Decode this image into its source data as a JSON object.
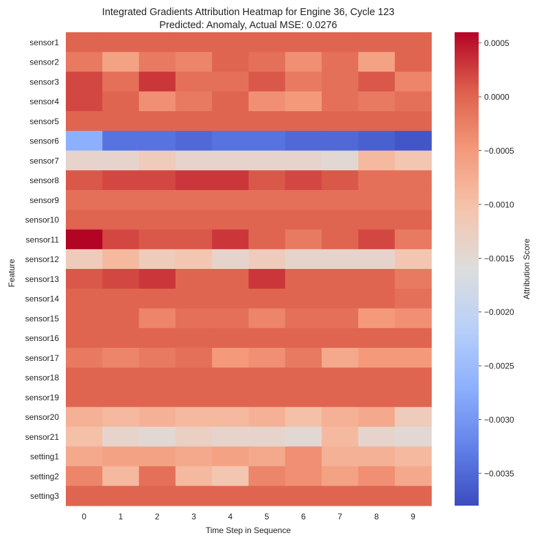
{
  "chart_data": {
    "type": "heatmap",
    "title": "Integrated Gradients Attribution Heatmap for Engine 36, Cycle 123",
    "subtitle": "Predicted: Anomaly, Actual MSE: 0.0276",
    "xlabel": "Time Step in Sequence",
    "ylabel": "Feature",
    "colorbar_label": "Attribution Score",
    "colormap": "coolwarm",
    "vmin": -0.0038,
    "vmax": 0.0006,
    "colorbar_ticks": [
      0.0005,
      0.0,
      -0.0005,
      -0.001,
      -0.0015,
      -0.002,
      -0.0025,
      -0.003,
      -0.0035
    ],
    "colorbar_tick_labels": [
      "0.0005",
      "0.0000",
      "−0.0005",
      "−0.0010",
      "−0.0015",
      "−0.0020",
      "−0.0025",
      "−0.0030",
      "−0.0035"
    ],
    "x": [
      "0",
      "1",
      "2",
      "3",
      "4",
      "5",
      "6",
      "7",
      "8",
      "9"
    ],
    "y": [
      "sensor1",
      "sensor2",
      "sensor3",
      "sensor4",
      "sensor5",
      "sensor6",
      "sensor7",
      "sensor8",
      "sensor9",
      "sensor10",
      "sensor11",
      "sensor12",
      "sensor13",
      "sensor14",
      "sensor15",
      "sensor16",
      "sensor17",
      "sensor18",
      "sensor19",
      "sensor20",
      "sensor21",
      "setting1",
      "setting2",
      "setting3"
    ],
    "values": [
      [
        0.0,
        0.0,
        0.0,
        0.0,
        0.0,
        0.0,
        0.0,
        0.0,
        0.0,
        0.0
      ],
      [
        -0.0002,
        -0.0006,
        -0.0002,
        -0.0003,
        0.0,
        -0.0001,
        -0.0004,
        -0.0001,
        -0.0006,
        0.0
      ],
      [
        0.0002,
        -0.0001,
        0.0003,
        -0.0001,
        -0.0001,
        0.0001,
        -0.0002,
        -0.0001,
        0.0001,
        -0.0003
      ],
      [
        0.0002,
        0.0,
        -0.0004,
        -0.0002,
        0.0,
        -0.0004,
        -0.0005,
        -0.0001,
        -0.0002,
        -0.0001
      ],
      [
        0.0,
        0.0,
        0.0,
        0.0,
        0.0,
        0.0,
        0.0,
        0.0,
        0.0,
        0.0
      ],
      [
        -0.0027,
        -0.0034,
        -0.0034,
        -0.0035,
        -0.0034,
        -0.0034,
        -0.0035,
        -0.0035,
        -0.0036,
        -0.0037
      ],
      [
        -0.0014,
        -0.0014,
        -0.0012,
        -0.0014,
        -0.0014,
        -0.0014,
        -0.0014,
        -0.0015,
        -0.0009,
        -0.0011
      ],
      [
        0.0001,
        0.0002,
        0.0002,
        0.0003,
        0.0003,
        0.0001,
        0.0002,
        0.0001,
        -0.0001,
        -0.0001
      ],
      [
        -0.0001,
        -0.0001,
        -0.0001,
        -0.0001,
        -0.0001,
        -0.0001,
        -0.0001,
        -0.0001,
        -0.0001,
        -0.0001
      ],
      [
        0.0,
        0.0,
        0.0,
        0.0,
        0.0,
        0.0,
        0.0,
        0.0,
        0.0,
        0.0
      ],
      [
        0.0006,
        0.0002,
        0.0001,
        0.0001,
        0.0003,
        0.0,
        -0.0002,
        0.0,
        0.0002,
        -0.0002
      ],
      [
        -0.0012,
        -0.0009,
        -0.0012,
        -0.0011,
        -0.0014,
        -0.0012,
        -0.0014,
        -0.0014,
        -0.0014,
        -0.0011
      ],
      [
        0.0001,
        0.0002,
        0.0003,
        0.0,
        0.0,
        0.0003,
        0.0,
        0.0,
        0.0,
        -0.0002
      ],
      [
        0.0,
        0.0,
        0.0,
        0.0,
        0.0,
        0.0,
        0.0,
        0.0,
        0.0,
        -0.0001
      ],
      [
        0.0,
        0.0,
        -0.0003,
        -0.0001,
        -0.0001,
        -0.0003,
        -0.0001,
        -0.0001,
        -0.0005,
        -0.0004
      ],
      [
        0.0,
        0.0,
        0.0,
        0.0,
        0.0,
        0.0,
        0.0,
        0.0,
        0.0,
        0.0
      ],
      [
        -0.0002,
        -0.0003,
        -0.0002,
        -0.0001,
        -0.0005,
        -0.0004,
        -0.0002,
        -0.0007,
        -0.0005,
        -0.0005
      ],
      [
        0.0,
        0.0,
        0.0,
        0.0,
        0.0,
        0.0,
        0.0,
        0.0,
        0.0,
        0.0
      ],
      [
        0.0,
        0.0,
        0.0,
        0.0,
        0.0,
        0.0,
        0.0,
        0.0,
        0.0,
        0.0
      ],
      [
        -0.0008,
        -0.0009,
        -0.0008,
        -0.0009,
        -0.0009,
        -0.0008,
        -0.001,
        -0.0008,
        -0.0007,
        -0.0012
      ],
      [
        -0.001,
        -0.0014,
        -0.0015,
        -0.0013,
        -0.0014,
        -0.0014,
        -0.0015,
        -0.0009,
        -0.0014,
        -0.0015
      ],
      [
        -0.0007,
        -0.0006,
        -0.0006,
        -0.0007,
        -0.0006,
        -0.0007,
        -0.0004,
        -0.0008,
        -0.0008,
        -0.0009
      ],
      [
        -0.0003,
        -0.0009,
        -0.0001,
        -0.0009,
        -0.0011,
        -0.0003,
        -0.0004,
        -0.0006,
        -0.0004,
        -0.0007
      ],
      [
        0.0,
        0.0,
        0.0,
        0.0,
        0.0,
        0.0,
        0.0,
        0.0,
        0.0,
        0.0
      ]
    ]
  }
}
